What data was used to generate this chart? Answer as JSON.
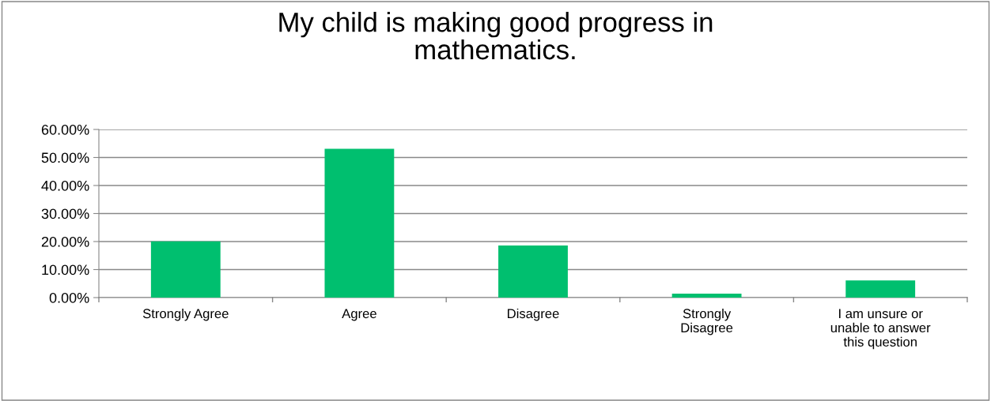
{
  "chart_data": {
    "type": "bar",
    "title": "My child is making good progress in mathematics.",
    "categories": [
      "Strongly Agree",
      "Agree",
      "Disagree",
      "Strongly Disagree",
      "I am unsure or unable to answer this question"
    ],
    "values": [
      20.1,
      53.1,
      18.6,
      1.4,
      6.1
    ],
    "color": "#00bf6f",
    "ylim": [
      0,
      60
    ],
    "yticks": [
      {
        "value": 0,
        "label": "0.00%"
      },
      {
        "value": 10,
        "label": "10.00%"
      },
      {
        "value": 20,
        "label": "20.00%"
      },
      {
        "value": 30,
        "label": "30.00%"
      },
      {
        "value": 40,
        "label": "40.00%"
      },
      {
        "value": 50,
        "label": "50.00%"
      },
      {
        "value": 60,
        "label": "60.00%"
      }
    ],
    "grid": "y",
    "legend": false
  }
}
